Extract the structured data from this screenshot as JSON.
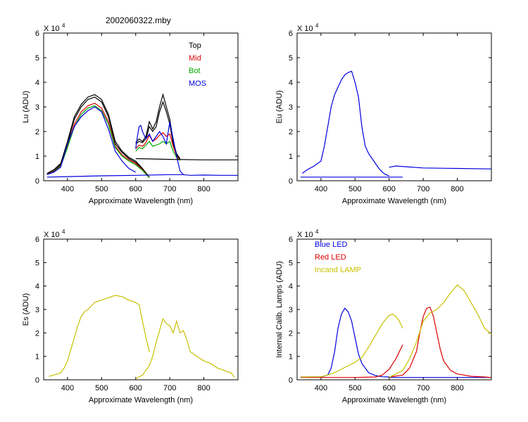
{
  "figure_title": "2002060322.mby",
  "colors": {
    "top": "#000000",
    "mid": "#dd0000",
    "bot": "#00aa00",
    "mos": "#0000dd",
    "eu": "#0000dd",
    "es": "#c8c000",
    "blue_led": "#0000dd",
    "red_led": "#dd0000",
    "incand": "#c8c000"
  },
  "chart_data": [
    {
      "id": "lu",
      "type": "line",
      "ylabel": "Lu (ADU)",
      "xlabel": "Approximate Wavelength (nm)",
      "multiplier": "X 10",
      "multiplier_exp": "4",
      "xlim": [
        330,
        900
      ],
      "ylim": [
        0,
        6
      ],
      "xticks": [
        400,
        500,
        600,
        700,
        800
      ],
      "yticks": [
        0,
        1,
        2,
        3,
        4,
        5,
        6
      ],
      "legend": [
        {
          "label": "Top",
          "color": "#000000"
        },
        {
          "label": "Mid",
          "color": "#dd0000"
        },
        {
          "label": "Bot",
          "color": "#00aa00"
        },
        {
          "label": "MOS",
          "color": "#0000dd"
        }
      ],
      "series": [
        {
          "name": "Top",
          "color": "#000000",
          "x": [
            340,
            360,
            380,
            400,
            420,
            440,
            460,
            480,
            500,
            520,
            540,
            560,
            580,
            600,
            620,
            640
          ],
          "y": [
            0.3,
            0.45,
            0.7,
            1.6,
            2.6,
            3.1,
            3.4,
            3.5,
            3.3,
            2.7,
            1.6,
            1.2,
            0.95,
            0.8,
            0.5,
            0.15
          ]
        },
        {
          "name": "Top",
          "color": "#000000",
          "x": [
            340,
            360,
            380,
            400,
            420,
            440,
            460,
            480,
            500,
            520,
            540,
            560,
            580,
            600,
            620,
            640
          ],
          "y": [
            0.28,
            0.4,
            0.65,
            1.5,
            2.5,
            3.0,
            3.3,
            3.4,
            3.2,
            2.6,
            1.5,
            1.15,
            0.9,
            0.75,
            0.48,
            0.14
          ]
        },
        {
          "name": "Mid",
          "color": "#dd0000",
          "x": [
            340,
            360,
            380,
            400,
            420,
            440,
            460,
            480,
            500,
            520,
            540,
            560,
            580,
            600,
            620,
            640
          ],
          "y": [
            0.27,
            0.38,
            0.6,
            1.4,
            2.3,
            2.8,
            3.05,
            3.15,
            2.95,
            2.4,
            1.4,
            1.05,
            0.85,
            0.7,
            0.45,
            0.13
          ]
        },
        {
          "name": "Bot",
          "color": "#00aa00",
          "x": [
            340,
            360,
            380,
            400,
            420,
            440,
            460,
            480,
            500,
            520,
            540,
            560,
            580,
            600,
            620,
            640
          ],
          "y": [
            0.26,
            0.36,
            0.58,
            1.35,
            2.2,
            2.7,
            2.95,
            3.05,
            2.85,
            2.3,
            1.35,
            1.0,
            0.8,
            0.65,
            0.42,
            0.12
          ]
        },
        {
          "name": "MOS",
          "color": "#0000dd",
          "x": [
            340,
            360,
            380,
            400,
            420,
            440,
            460,
            480,
            500,
            520,
            540,
            560,
            580,
            600
          ],
          "y": [
            0.25,
            0.35,
            0.55,
            1.5,
            2.2,
            2.6,
            2.85,
            3.0,
            2.8,
            2.1,
            1.2,
            0.8,
            0.5,
            0.35
          ]
        },
        {
          "name": "Top",
          "color": "#000000",
          "x": [
            600,
            610,
            620,
            630,
            640,
            650,
            660,
            670,
            680,
            690,
            700,
            710,
            720,
            730
          ],
          "y": [
            1.55,
            1.7,
            1.6,
            1.8,
            2.4,
            2.1,
            2.4,
            3.0,
            3.5,
            3.0,
            2.5,
            1.6,
            1.1,
            0.9
          ]
        },
        {
          "name": "Top",
          "color": "#000000",
          "x": [
            600,
            610,
            620,
            630,
            640,
            650,
            660,
            670,
            680,
            690,
            700,
            710,
            720,
            730
          ],
          "y": [
            1.5,
            1.6,
            1.55,
            1.7,
            2.2,
            2.0,
            2.2,
            2.8,
            3.2,
            2.8,
            2.3,
            1.5,
            1.05,
            0.88
          ]
        },
        {
          "name": "Mid",
          "color": "#dd0000",
          "x": [
            600,
            610,
            620,
            630,
            640,
            650,
            660,
            670,
            680,
            690,
            700,
            710,
            720,
            730
          ],
          "y": [
            1.3,
            1.45,
            1.4,
            1.55,
            1.85,
            1.6,
            1.7,
            1.85,
            1.95,
            1.8,
            1.9,
            1.4,
            1.0,
            0.85
          ]
        },
        {
          "name": "Bot",
          "color": "#00aa00",
          "x": [
            600,
            610,
            620,
            630,
            640,
            650,
            660,
            670,
            680,
            690,
            700,
            710,
            720,
            730
          ],
          "y": [
            1.2,
            1.35,
            1.3,
            1.45,
            1.6,
            1.4,
            1.45,
            1.5,
            1.6,
            1.5,
            1.6,
            1.2,
            0.95,
            0.82
          ]
        },
        {
          "name": "MOS",
          "color": "#0000dd",
          "x": [
            600,
            605,
            610,
            615,
            620,
            630,
            640,
            650,
            660,
            670,
            680,
            690,
            700,
            710,
            720,
            730,
            740,
            760
          ],
          "y": [
            1.3,
            1.8,
            2.2,
            2.25,
            2.0,
            1.7,
            1.9,
            1.6,
            1.8,
            2.0,
            1.8,
            1.5,
            2.4,
            1.7,
            1.0,
            0.4,
            0.25,
            0.22
          ]
        },
        {
          "name": "Top",
          "color": "#000000",
          "x": [
            600,
            700,
            800,
            900
          ],
          "y": [
            0.9,
            0.87,
            0.85,
            0.85
          ]
        },
        {
          "name": "MOS",
          "color": "#0000dd",
          "x": [
            760,
            800,
            850,
            900
          ],
          "y": [
            0.22,
            0.23,
            0.22,
            0.22
          ]
        },
        {
          "name": "MOS",
          "color": "#0000dd",
          "x": [
            340,
            400,
            500,
            600,
            700,
            740
          ],
          "y": [
            0.15,
            0.17,
            0.2,
            0.22,
            0.25,
            0.25
          ]
        }
      ]
    },
    {
      "id": "eu",
      "type": "line",
      "ylabel": "Eu  (ADU)",
      "xlabel": "Approximate Wavelength (nm)",
      "multiplier": "X 10",
      "multiplier_exp": "4",
      "xlim": [
        330,
        900
      ],
      "ylim": [
        0,
        6
      ],
      "xticks": [
        400,
        500,
        600,
        700,
        800
      ],
      "yticks": [
        0,
        1,
        2,
        3,
        4,
        5,
        6
      ],
      "legend": [],
      "series": [
        {
          "name": "Eu",
          "color": "#0000dd",
          "x": [
            345,
            360,
            380,
            400,
            410,
            420,
            430,
            440,
            450,
            460,
            470,
            480,
            490,
            500,
            510,
            520,
            530,
            540,
            550,
            560,
            570,
            580,
            590,
            600
          ],
          "y": [
            0.3,
            0.45,
            0.6,
            0.8,
            1.4,
            2.2,
            3.0,
            3.5,
            3.8,
            4.1,
            4.3,
            4.4,
            4.45,
            4.0,
            3.4,
            2.2,
            1.4,
            1.1,
            0.9,
            0.7,
            0.5,
            0.35,
            0.25,
            0.2
          ]
        },
        {
          "name": "Eu",
          "color": "#0000dd",
          "x": [
            340,
            400,
            500,
            600,
            640
          ],
          "y": [
            0.15,
            0.15,
            0.15,
            0.15,
            0.15
          ]
        },
        {
          "name": "Eu",
          "color": "#0000dd",
          "x": [
            600,
            620,
            650,
            700,
            800,
            900
          ],
          "y": [
            0.55,
            0.6,
            0.57,
            0.52,
            0.5,
            0.48
          ]
        }
      ]
    },
    {
      "id": "es",
      "type": "line",
      "ylabel": "Es  (ADU)",
      "xlabel": "Approximate Wavelength (nm)",
      "multiplier": "X 10",
      "multiplier_exp": "4",
      "xlim": [
        330,
        900
      ],
      "ylim": [
        0,
        6
      ],
      "xticks": [
        400,
        500,
        600,
        700,
        800
      ],
      "yticks": [
        0,
        1,
        2,
        3,
        4,
        5,
        6
      ],
      "legend": [],
      "series": [
        {
          "name": "Es",
          "color": "#c8c000",
          "x": [
            345,
            360,
            380,
            390,
            400,
            410,
            420,
            430,
            440,
            450,
            460,
            480,
            500,
            520,
            540,
            560,
            580,
            600,
            610,
            620,
            630,
            640
          ],
          "y": [
            0.15,
            0.2,
            0.3,
            0.5,
            0.8,
            1.3,
            1.8,
            2.3,
            2.7,
            2.9,
            3.0,
            3.3,
            3.4,
            3.5,
            3.6,
            3.55,
            3.4,
            3.3,
            3.2,
            2.5,
            1.8,
            1.2
          ]
        },
        {
          "name": "Es",
          "color": "#c8c000",
          "x": [
            600,
            620,
            640,
            650,
            660,
            670,
            680,
            690,
            700,
            710,
            720,
            730,
            740,
            750,
            760,
            780,
            800,
            820,
            840,
            860,
            880,
            890
          ],
          "y": [
            0.05,
            0.2,
            0.6,
            1.0,
            1.6,
            2.1,
            2.6,
            2.4,
            2.3,
            2.0,
            2.5,
            2.0,
            2.1,
            1.7,
            1.2,
            1.0,
            0.8,
            0.7,
            0.5,
            0.4,
            0.3,
            0.1
          ]
        }
      ]
    },
    {
      "id": "cal",
      "type": "line",
      "ylabel": "Internal Calib. Lamps (ADU)",
      "xlabel": "Approximate Wavelength (nm)",
      "multiplier": "X 10",
      "multiplier_exp": "4",
      "xlim": [
        330,
        900
      ],
      "ylim": [
        0,
        6
      ],
      "xticks": [
        400,
        500,
        600,
        700,
        800
      ],
      "yticks": [
        0,
        1,
        2,
        3,
        4,
        5,
        6
      ],
      "legend": [
        {
          "label": "Blue LED",
          "color": "#0000dd"
        },
        {
          "label": "Red LED",
          "color": "#dd0000"
        },
        {
          "label": "Incand LAMP",
          "color": "#c8c000"
        }
      ],
      "series": [
        {
          "name": "Blue LED",
          "color": "#0000dd",
          "x": [
            340,
            400,
            420,
            430,
            440,
            450,
            460,
            470,
            480,
            490,
            500,
            510,
            520,
            530,
            540,
            560,
            580,
            600
          ],
          "y": [
            0.12,
            0.12,
            0.2,
            0.5,
            1.2,
            2.2,
            2.8,
            3.05,
            2.9,
            2.5,
            1.8,
            1.1,
            0.7,
            0.5,
            0.3,
            0.18,
            0.13,
            0.12
          ]
        },
        {
          "name": "Blue LED",
          "color": "#0000dd",
          "x": [
            600,
            700,
            800,
            900
          ],
          "y": [
            0.1,
            0.1,
            0.1,
            0.1
          ]
        },
        {
          "name": "Red LED",
          "color": "#dd0000",
          "x": [
            340,
            500,
            560,
            580,
            600,
            620,
            640
          ],
          "y": [
            0.1,
            0.1,
            0.12,
            0.2,
            0.45,
            0.9,
            1.5
          ]
        },
        {
          "name": "Red LED",
          "color": "#dd0000",
          "x": [
            600,
            640,
            660,
            680,
            690,
            700,
            710,
            720,
            730,
            740,
            750,
            760,
            780,
            800,
            840,
            880,
            900
          ],
          "y": [
            0.12,
            0.2,
            0.5,
            1.2,
            2.0,
            2.7,
            3.05,
            3.1,
            2.7,
            2.0,
            1.3,
            0.8,
            0.4,
            0.25,
            0.15,
            0.12,
            0.1
          ]
        },
        {
          "name": "Incand LAMP",
          "color": "#c8c000",
          "x": [
            340,
            400,
            420,
            440,
            460,
            480,
            500,
            520,
            540,
            560,
            580,
            600,
            610,
            620,
            630,
            640
          ],
          "y": [
            0.12,
            0.13,
            0.2,
            0.3,
            0.45,
            0.6,
            0.75,
            0.95,
            1.4,
            1.9,
            2.4,
            2.75,
            2.8,
            2.7,
            2.5,
            2.2
          ]
        },
        {
          "name": "Incand LAMP",
          "color": "#c8c000",
          "x": [
            600,
            640,
            660,
            680,
            700,
            720,
            740,
            760,
            780,
            800,
            820,
            840,
            860,
            880,
            900
          ],
          "y": [
            0.1,
            0.4,
            0.9,
            1.6,
            2.5,
            2.85,
            3.0,
            3.3,
            3.7,
            4.05,
            3.8,
            3.3,
            2.8,
            2.2,
            1.95
          ]
        }
      ]
    }
  ]
}
